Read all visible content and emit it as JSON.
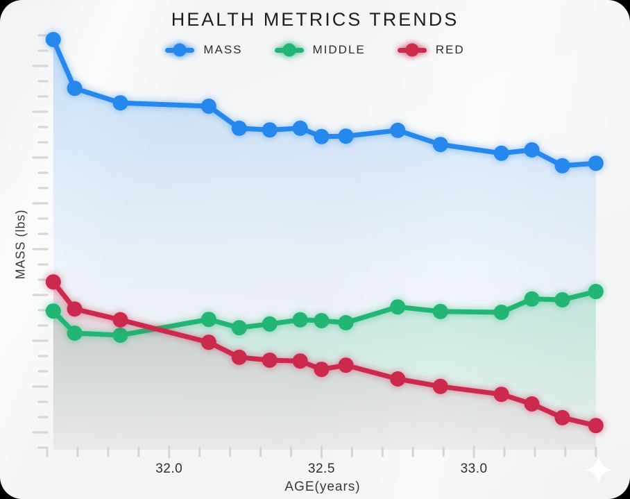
{
  "page": {
    "background_color": "#f4f5f6",
    "frame_outside_color": "#000000"
  },
  "chart": {
    "title": "HEALTH METRICS TRENDS",
    "x_axis_label": "AGE(years)",
    "y_axis_label": "MASS (lbs)"
  },
  "chart_data": {
    "type": "line",
    "title": "HEALTH METRICS TRENDS",
    "xlabel": "AGE(years)",
    "ylabel": "MASS (lbs)",
    "legend_position": "top",
    "grid": false,
    "xlim": [
      31.6,
      33.43
    ],
    "ylim": [
      0,
      100
    ],
    "x_minor_tick_step": 0.1,
    "x_ticks": [
      {
        "value": 32.0,
        "label": "32.0"
      },
      {
        "value": 32.5,
        "label": "32.5"
      },
      {
        "value": 33.0,
        "label": "33.0"
      }
    ],
    "y_tick_labels": [],
    "x": [
      31.62,
      31.69,
      31.84,
      32.13,
      32.23,
      32.33,
      32.43,
      32.5,
      32.58,
      32.75,
      32.89,
      33.09,
      33.19,
      33.29,
      33.4
    ],
    "series": [
      {
        "name": "MASS",
        "color": "#2688ec",
        "values": [
          98.5,
          86.8,
          83.3,
          82.5,
          77.2,
          76.8,
          77.2,
          75.2,
          75.3,
          76.7,
          73.3,
          71.2,
          72.0,
          68.2,
          68.8
        ]
      },
      {
        "name": "MIDDLE",
        "color": "#21b573",
        "values": [
          33.3,
          28.0,
          27.5,
          31.3,
          29.3,
          30.2,
          31.2,
          31.0,
          30.5,
          34.3,
          33.2,
          33.0,
          36.2,
          36.0,
          38.0
        ]
      },
      {
        "name": "RED",
        "color": "#cc2b4d",
        "values": [
          40.3,
          33.8,
          31.2,
          25.8,
          22.2,
          21.5,
          21.3,
          19.3,
          20.3,
          17.0,
          15.2,
          13.3,
          11.0,
          7.7,
          5.8
        ]
      }
    ]
  },
  "decorations": {
    "sparkle_icon_color": "#ffffff",
    "tick_color": "#d4d5d7",
    "tick_label_color": "#2e2e30"
  }
}
